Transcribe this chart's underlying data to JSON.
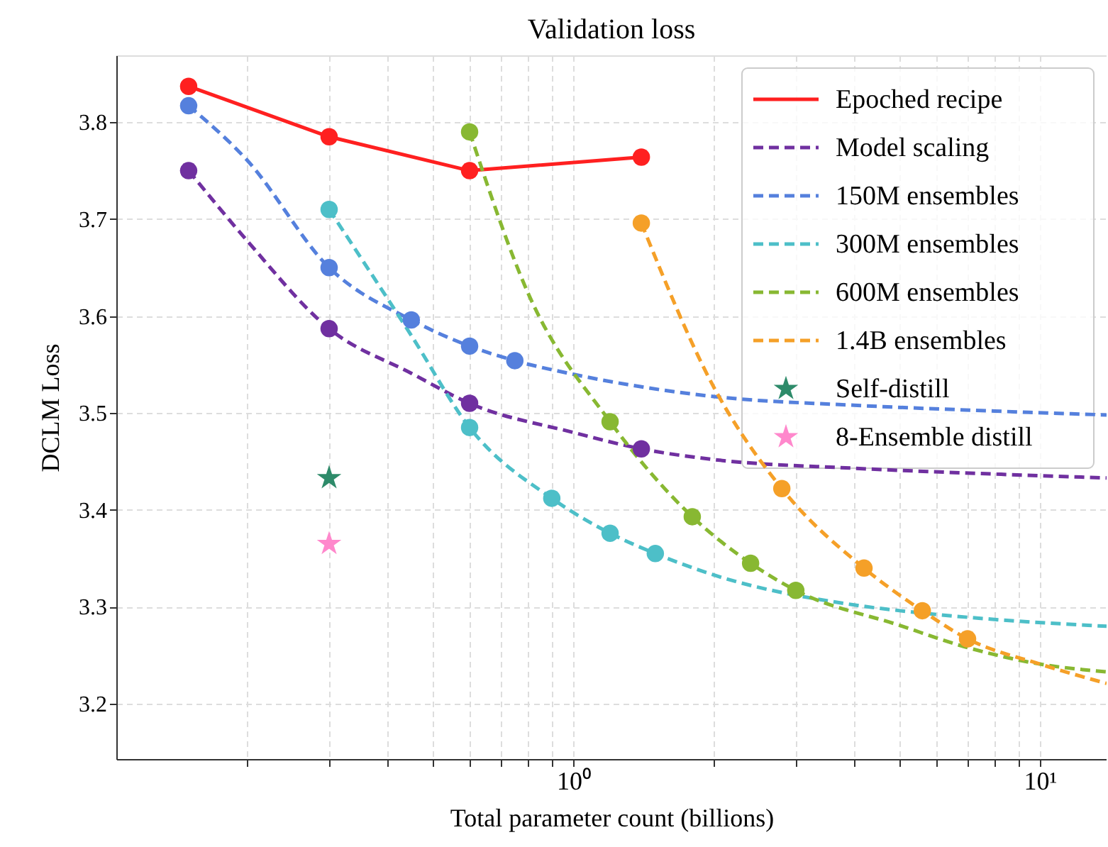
{
  "chart_data": {
    "type": "line",
    "title": "Validation loss",
    "xlabel": "Total parameter count (billions)",
    "ylabel": "DCLM Loss",
    "log": "x",
    "grid": true,
    "legend": "top right",
    "xlim": [
      0.105,
      13.9
    ],
    "ylim": [
      3.143,
      3.869
    ],
    "xticks": [
      {
        "value": 0.2,
        "label": null
      },
      {
        "value": 0.3,
        "label": null
      },
      {
        "value": 0.4,
        "label": null
      },
      {
        "value": 0.5,
        "label": null
      },
      {
        "value": 0.6,
        "label": null
      },
      {
        "value": 0.7,
        "label": null
      },
      {
        "value": 0.8,
        "label": null
      },
      {
        "value": 0.9,
        "label": null
      },
      {
        "value": 1,
        "label": "10⁰"
      },
      {
        "value": 2,
        "label": null
      },
      {
        "value": 3,
        "label": null
      },
      {
        "value": 4,
        "label": null
      },
      {
        "value": 5,
        "label": null
      },
      {
        "value": 6,
        "label": null
      },
      {
        "value": 7,
        "label": null
      },
      {
        "value": 8,
        "label": null
      },
      {
        "value": 9,
        "label": null
      },
      {
        "value": 10,
        "label": "10¹"
      }
    ],
    "yticks": [
      3.2,
      3.3,
      3.4,
      3.5,
      3.6,
      3.7,
      3.8
    ],
    "series": [
      {
        "name": "Epoched recipe",
        "line_style": "solid",
        "marker": "circle",
        "color": "#ff2020",
        "x": [
          0.15,
          0.3,
          0.6,
          1.4
        ],
        "values": [
          3.837,
          3.785,
          3.75,
          3.764
        ]
      },
      {
        "name": "Model scaling",
        "line_style": "dashed",
        "marker": "none",
        "color": "#7030a0",
        "x": [
          0.15,
          0.2,
          0.3,
          0.45,
          0.6,
          1.0,
          1.4,
          2,
          4,
          8,
          13.9
        ],
        "values": [
          3.75,
          3.678,
          3.587,
          3.541,
          3.51,
          3.48,
          3.463,
          3.452,
          3.443,
          3.437,
          3.433
        ]
      },
      {
        "name": "150M ensembles",
        "line_style": "dashed",
        "marker": "none",
        "color": "#5580dd",
        "x": [
          0.15,
          0.2,
          0.3,
          0.45,
          0.6,
          0.75,
          1.0,
          2,
          4,
          8,
          13.9
        ],
        "values": [
          3.817,
          3.761,
          3.65,
          3.596,
          3.569,
          3.554,
          3.54,
          3.517,
          3.508,
          3.502,
          3.498
        ]
      },
      {
        "name": "300M ensembles",
        "line_style": "dashed",
        "marker": "none",
        "color": "#4dbfc8",
        "x": [
          0.3,
          0.45,
          0.6,
          0.9,
          1.2,
          1.5,
          2,
          4,
          5.5,
          8,
          13.9
        ],
        "values": [
          3.71,
          3.58,
          3.485,
          3.412,
          3.376,
          3.355,
          3.333,
          3.302,
          3.294,
          3.287,
          3.28
        ]
      },
      {
        "name": "600M ensembles",
        "line_style": "dashed",
        "marker": "none",
        "color": "#88b832",
        "x": [
          0.6,
          0.8,
          1.2,
          1.8,
          2.4,
          3.0,
          5,
          7,
          10,
          13.9
        ],
        "values": [
          3.79,
          3.624,
          3.491,
          3.393,
          3.345,
          3.317,
          3.281,
          3.258,
          3.241,
          3.233
        ]
      },
      {
        "name": "1.4B ensembles",
        "line_style": "dashed",
        "marker": "none",
        "color": "#f5a028",
        "x": [
          1.4,
          2,
          2.8,
          4.2,
          5.6,
          7.0,
          10,
          13.9
        ],
        "values": [
          3.696,
          3.527,
          3.422,
          3.34,
          3.296,
          3.267,
          3.241,
          3.221
        ]
      },
      {
        "name": "Self-distill",
        "type": "scatter",
        "marker": "star",
        "color": "#2e8b6a",
        "x": [
          0.3
        ],
        "values": [
          3.433
        ]
      },
      {
        "name": "8-Ensemble distill",
        "type": "scatter",
        "marker": "star",
        "color": "#ff88cc",
        "x": [
          0.3
        ],
        "values": [
          3.365
        ]
      },
      {
        "type": "scatter",
        "marker": "circle",
        "color": "#7030a0",
        "x": [
          0.15,
          0.3,
          0.6,
          1.4
        ],
        "values": [
          3.75,
          3.587,
          3.51,
          3.463
        ]
      },
      {
        "type": "scatter",
        "marker": "circle",
        "color": "#5580dd",
        "x": [
          0.15,
          0.3,
          0.45,
          0.6,
          0.75
        ],
        "values": [
          3.817,
          3.65,
          3.596,
          3.569,
          3.554
        ]
      },
      {
        "type": "scatter",
        "marker": "circle",
        "color": "#4dbfc8",
        "x": [
          0.3,
          0.6,
          0.9,
          1.2,
          1.5
        ],
        "values": [
          3.71,
          3.485,
          3.412,
          3.376,
          3.355
        ]
      },
      {
        "type": "scatter",
        "marker": "circle",
        "color": "#88b832",
        "x": [
          0.6,
          1.2,
          1.8,
          2.4,
          3.0
        ],
        "values": [
          3.79,
          3.491,
          3.393,
          3.345,
          3.317
        ]
      },
      {
        "type": "scatter",
        "marker": "circle",
        "color": "#f5a028",
        "x": [
          1.4,
          2.8,
          4.2,
          5.6,
          7.0
        ],
        "values": [
          3.696,
          3.422,
          3.34,
          3.296,
          3.267
        ]
      }
    ]
  }
}
